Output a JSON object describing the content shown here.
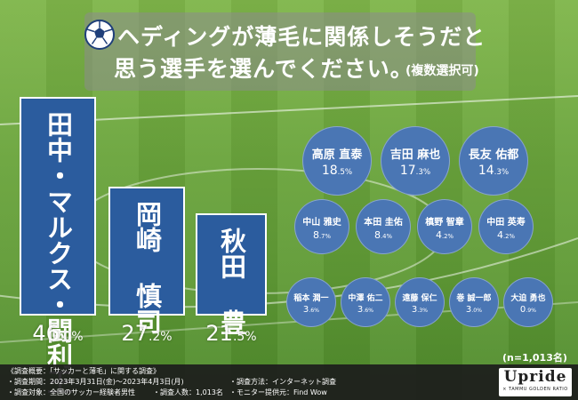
{
  "title": {
    "line1": "ヘディングが薄毛に関係しそうだと",
    "line2": "思う選手を選んでください。",
    "note": "(複数選択可)"
  },
  "chart_data": {
    "type": "bar",
    "unit": "%",
    "top_bars": [
      {
        "label": "田中・マルクス・闘利王",
        "value": 46.0,
        "value_text": "46",
        "decimal_text": ".0%"
      },
      {
        "label": "岡崎 慎司",
        "value": 27.2,
        "value_text": "27",
        "decimal_text": ".2%"
      },
      {
        "label": "秋田 豊",
        "value": 21.5,
        "value_text": "21",
        "decimal_text": ".5%"
      }
    ],
    "bubbles": [
      {
        "name": "高原 直泰",
        "value": 18.5,
        "value_text": "18",
        "decimal_text": ".5%"
      },
      {
        "name": "吉田 麻也",
        "value": 17.3,
        "value_text": "17",
        "decimal_text": ".3%"
      },
      {
        "name": "長友 佑都",
        "value": 14.3,
        "value_text": "14",
        "decimal_text": ".3%"
      },
      {
        "name": "中山 雅史",
        "value": 8.7,
        "value_text": "8",
        "decimal_text": ".7%"
      },
      {
        "name": "本田 圭佑",
        "value": 8.4,
        "value_text": "8",
        "decimal_text": ".4%"
      },
      {
        "name": "槙野 智章",
        "value": 4.2,
        "value_text": "4",
        "decimal_text": ".2%"
      },
      {
        "name": "中田 英寿",
        "value": 4.2,
        "value_text": "4",
        "decimal_text": ".2%"
      },
      {
        "name": "稲本 潤一",
        "value": 3.6,
        "value_text": "3",
        "decimal_text": ".6%"
      },
      {
        "name": "中澤 佑二",
        "value": 3.6,
        "value_text": "3",
        "decimal_text": ".6%"
      },
      {
        "name": "遠藤 保仁",
        "value": 3.3,
        "value_text": "3",
        "decimal_text": ".3%"
      },
      {
        "name": "巻 誠一郎",
        "value": 3.0,
        "value_text": "3",
        "decimal_text": ".0%"
      },
      {
        "name": "大迫 勇也",
        "value": 0.9,
        "value_text": "0",
        "decimal_text": ".9%"
      }
    ],
    "sample_note": "(n=1,013名)"
  },
  "footer": {
    "overview": "《調査概要：「サッカーと薄毛」に関する調査》",
    "period": "・調査期間：2023年3月31日(金)～2023年4月3日(月)",
    "target": "・調査対象：全国のサッカー経験者男性",
    "count": "・調査人数：1,013名",
    "method": "・調査方法：インターネット調査",
    "provider": "・モニター提供元：Find Wow"
  },
  "logo": {
    "main": "Upride",
    "sub": "× TAMMU GOLDEN RATIO"
  },
  "colors": {
    "bar": "#2b5c9e",
    "bubble": "#4a76b4",
    "footer": "#1c1c1c"
  }
}
